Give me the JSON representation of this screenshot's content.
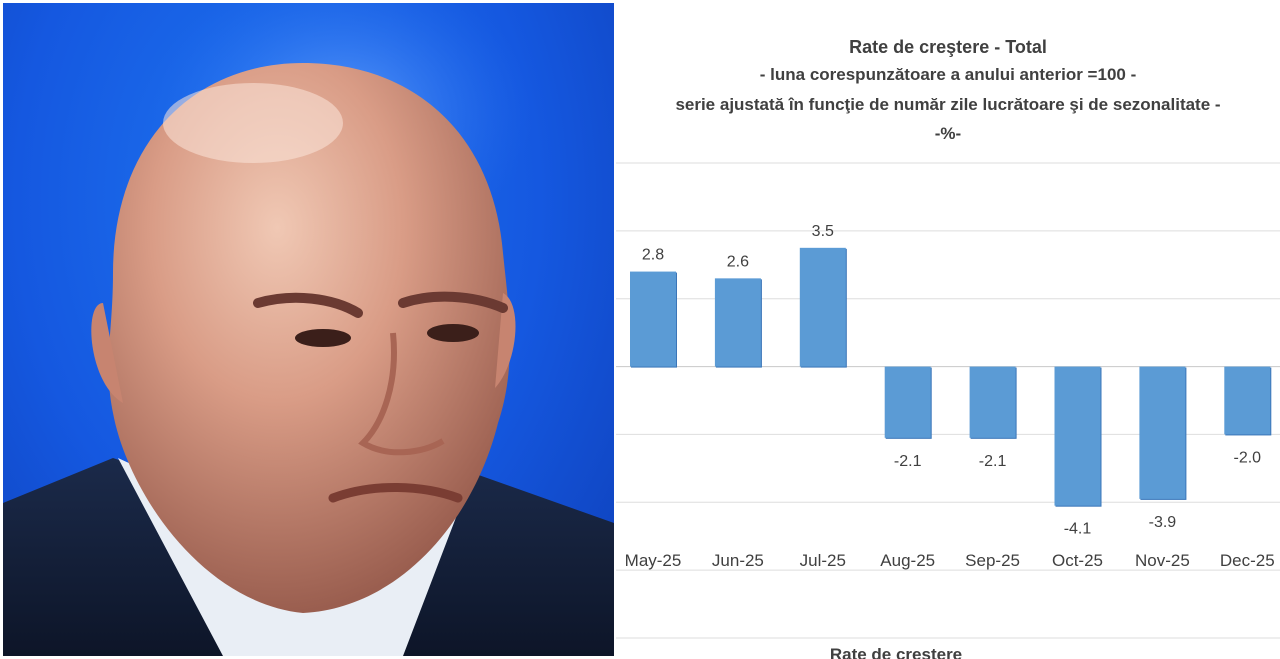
{
  "photo": {
    "subject": "portrait-photo"
  },
  "chart_data": {
    "type": "bar",
    "title_lines": [
      "Rate de creştere - Total",
      "- luna corespunzătoare a anului anterior =100 -",
      "serie ajustată în funcţie de număr zile lucrătoare şi de sezonalitate -",
      "-%-"
    ],
    "categories": [
      "May-25",
      "Jun-25",
      "Jul-25",
      "Aug-25",
      "Sep-25",
      "Oct-25",
      "Nov-25",
      "Dec-25"
    ],
    "values": [
      2.8,
      2.6,
      3.5,
      -2.1,
      -2.1,
      -4.1,
      -3.9,
      -2.0
    ],
    "data_labels": [
      "2.8",
      "2.6",
      "3.5",
      "-2.1",
      "-2.1",
      "-4.1",
      "-3.9",
      "-2.0"
    ],
    "ylim": [
      -8,
      6
    ],
    "grid": true,
    "legend": "none",
    "bar_color": "#5b9bd5",
    "bar_color_dark": "#3a75b8"
  },
  "next_chart_title": "Rate de creştere"
}
